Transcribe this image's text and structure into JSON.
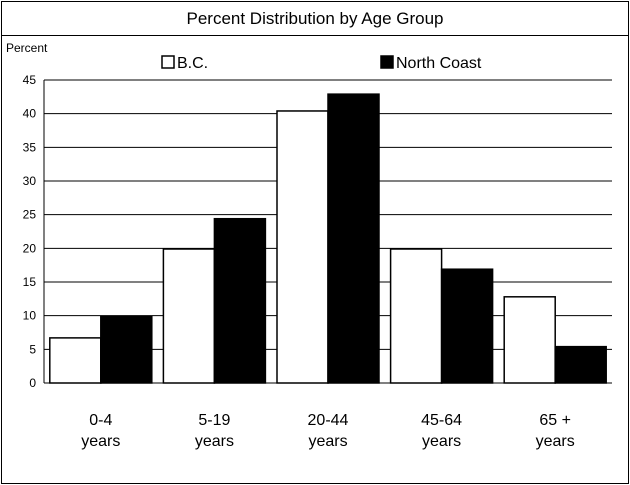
{
  "chart_data": {
    "type": "bar",
    "title": "Percent Distribution by Age Group",
    "ylabel": "Percent",
    "xlabel": "",
    "ylim": [
      0,
      45
    ],
    "yticks": [
      0,
      5,
      10,
      15,
      20,
      25,
      30,
      35,
      40,
      45
    ],
    "grid": true,
    "legend_position": "top",
    "categories": [
      [
        "0-4",
        "years"
      ],
      [
        "5-19",
        "years"
      ],
      [
        "20-44",
        "years"
      ],
      [
        "45-64",
        "years"
      ],
      [
        "65 +",
        "years"
      ]
    ],
    "series": [
      {
        "name": "B.C.",
        "color": "#ffffff",
        "values": [
          6.7,
          19.9,
          40.4,
          19.9,
          12.8
        ]
      },
      {
        "name": "North Coast",
        "color": "#000000",
        "values": [
          9.9,
          24.4,
          42.9,
          16.9,
          5.4
        ]
      }
    ]
  }
}
